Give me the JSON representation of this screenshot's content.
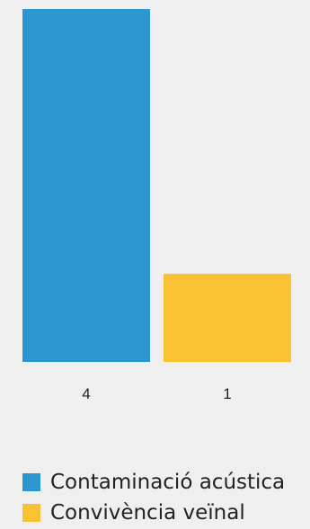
{
  "chart_data": {
    "type": "bar",
    "categories": [
      "Contaminació acústica",
      "Convivència veïnal"
    ],
    "values": [
      4,
      1
    ],
    "value_labels": [
      "4",
      "1"
    ],
    "colors": [
      "#2b96cf",
      "#f8c232"
    ],
    "ylim": [
      0,
      4
    ],
    "grid": false,
    "legend_position": "bottom-left",
    "title": "",
    "xlabel": "",
    "ylabel": ""
  },
  "legend": {
    "items": [
      {
        "label": "Contaminació acústica",
        "color": "#2b96cf"
      },
      {
        "label": "Convivència veïnal",
        "color": "#f8c232"
      }
    ]
  }
}
